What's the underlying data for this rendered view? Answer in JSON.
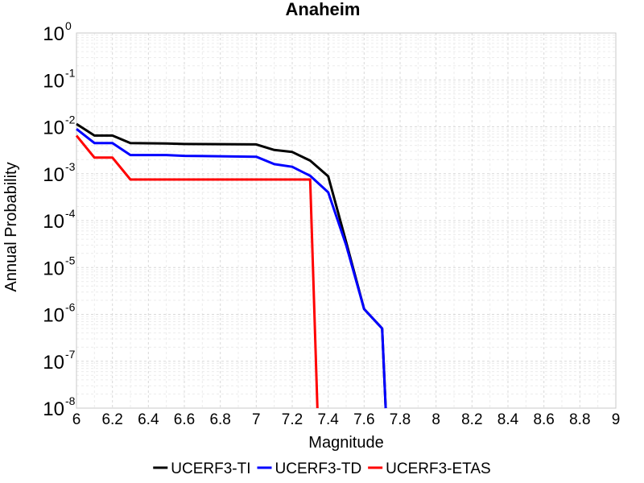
{
  "chart_data": {
    "type": "line",
    "title": "Anaheim",
    "xlabel": "Magnitude",
    "ylabel": "Annual Probability",
    "x_scale": "linear",
    "y_scale": "log",
    "xlim": [
      6,
      9
    ],
    "ylim": [
      1e-08,
      1
    ],
    "x_ticks": [
      "6",
      "6.2",
      "6.4",
      "6.6",
      "6.8",
      "7",
      "7.2",
      "7.4",
      "7.6",
      "7.8",
      "8",
      "8.2",
      "8.4",
      "8.6",
      "8.8",
      "9"
    ],
    "y_ticks": [
      {
        "base": "10",
        "exp": "0",
        "value": 1
      },
      {
        "base": "10",
        "exp": "-1",
        "value": 0.1
      },
      {
        "base": "10",
        "exp": "-2",
        "value": 0.01
      },
      {
        "base": "10",
        "exp": "-3",
        "value": 0.001
      },
      {
        "base": "10",
        "exp": "-4",
        "value": 0.0001
      },
      {
        "base": "10",
        "exp": "-5",
        "value": 1e-05
      },
      {
        "base": "10",
        "exp": "-6",
        "value": 1e-06
      },
      {
        "base": "10",
        "exp": "-7",
        "value": 1e-07
      },
      {
        "base": "10",
        "exp": "-8",
        "value": 1e-08
      }
    ],
    "grid": true,
    "legend_position": "bottom",
    "series": [
      {
        "name": "UCERF3-TI",
        "color": "#000000",
        "points": [
          [
            6.0,
            0.0115
          ],
          [
            6.1,
            0.0065
          ],
          [
            6.2,
            0.0065
          ],
          [
            6.3,
            0.0045
          ],
          [
            6.5,
            0.0044
          ],
          [
            6.6,
            0.0043
          ],
          [
            7.0,
            0.0042
          ],
          [
            7.1,
            0.0032
          ],
          [
            7.2,
            0.0029
          ],
          [
            7.3,
            0.0019
          ],
          [
            7.4,
            0.00088
          ],
          [
            7.5,
            3.5e-05
          ],
          [
            7.6,
            1.3e-06
          ],
          [
            7.7,
            5e-07
          ],
          [
            7.72,
            3e-09
          ]
        ]
      },
      {
        "name": "UCERF3-TD",
        "color": "#0000ff",
        "points": [
          [
            6.0,
            0.009
          ],
          [
            6.1,
            0.0045
          ],
          [
            6.2,
            0.0045
          ],
          [
            6.3,
            0.0025
          ],
          [
            6.5,
            0.0025
          ],
          [
            6.6,
            0.0024
          ],
          [
            7.0,
            0.0023
          ],
          [
            7.1,
            0.0016
          ],
          [
            7.2,
            0.0014
          ],
          [
            7.3,
            0.0009
          ],
          [
            7.4,
            0.0004
          ],
          [
            7.5,
            3e-05
          ],
          [
            7.6,
            1.3e-06
          ],
          [
            7.7,
            5e-07
          ],
          [
            7.72,
            3e-09
          ]
        ]
      },
      {
        "name": "UCERF3-ETAS",
        "color": "#ff0000",
        "points": [
          [
            6.0,
            0.0065
          ],
          [
            6.1,
            0.0022
          ],
          [
            6.2,
            0.0022
          ],
          [
            6.3,
            0.00075
          ],
          [
            7.0,
            0.00075
          ],
          [
            7.3,
            0.00075
          ],
          [
            7.34,
            3e-09
          ]
        ]
      }
    ]
  }
}
